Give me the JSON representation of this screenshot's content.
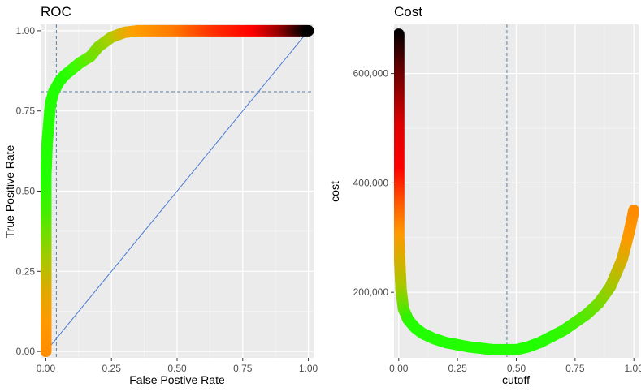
{
  "chart_data": [
    {
      "type": "scatter",
      "title": "ROC",
      "xlabel": "False Postive Rate",
      "ylabel": "True Positive Rate",
      "xlim": [
        -0.02,
        1.02
      ],
      "ylim": [
        -0.02,
        1.02
      ],
      "x_ticks": [
        "0.00",
        "0.25",
        "0.50",
        "0.75",
        "1.00"
      ],
      "y_ticks": [
        "0.00",
        "0.25",
        "0.50",
        "0.75",
        "1.00"
      ],
      "grid": true,
      "reference_lines": {
        "vline_x": 0.04,
        "hline_y": 0.81,
        "diagonal": [
          [
            0,
            0
          ],
          [
            1,
            1
          ]
        ]
      },
      "x": [
        0.0,
        0.0,
        0.0,
        0.0,
        0.0,
        0.0,
        0.005,
        0.01,
        0.015,
        0.02,
        0.03,
        0.05,
        0.07,
        0.1,
        0.13,
        0.17,
        0.2,
        0.25,
        0.3,
        0.35,
        0.5,
        0.65,
        0.8,
        0.9,
        1.0
      ],
      "y": [
        0.0,
        0.1,
        0.2,
        0.3,
        0.45,
        0.55,
        0.65,
        0.7,
        0.75,
        0.78,
        0.81,
        0.84,
        0.86,
        0.88,
        0.9,
        0.92,
        0.95,
        0.98,
        0.995,
        1.0,
        1.0,
        1.0,
        1.0,
        1.0,
        1.0
      ],
      "colors": [
        "#ff8c00",
        "#ff9900",
        "#e0a800",
        "#a8c800",
        "#44ee00",
        "#22ff00",
        "#22ff00",
        "#22ff00",
        "#22ff00",
        "#22ff00",
        "#22ff00",
        "#22ff00",
        "#22ff00",
        "#30ff00",
        "#44f800",
        "#66e800",
        "#80d800",
        "#a8d000",
        "#e0b000",
        "#ffa000",
        "#ff7a00",
        "#ff3000",
        "#ff0000",
        "#990000",
        "#000000"
      ]
    },
    {
      "type": "scatter",
      "title": "Cost",
      "xlabel": "cutoff",
      "ylabel": "cost",
      "xlim": [
        -0.02,
        1.02
      ],
      "ylim": [
        80000,
        690000
      ],
      "x_ticks": [
        "0.00",
        "0.25",
        "0.50",
        "0.75",
        "1.00"
      ],
      "y_ticks": [
        "200,000",
        "400,000",
        "600,000"
      ],
      "grid": true,
      "reference_lines": {
        "vline_x": 0.46
      },
      "x": [
        0.0,
        0.0,
        0.0,
        0.0,
        0.0,
        0.0,
        0.005,
        0.01,
        0.02,
        0.04,
        0.07,
        0.1,
        0.15,
        0.2,
        0.3,
        0.4,
        0.5,
        0.55,
        0.6,
        0.7,
        0.8,
        0.85,
        0.9,
        0.95,
        0.98,
        1.0
      ],
      "y": [
        672000,
        600000,
        500000,
        420000,
        350000,
        300000,
        250000,
        205000,
        170000,
        150000,
        135000,
        125000,
        115000,
        108000,
        100000,
        95000,
        95000,
        100000,
        108000,
        130000,
        160000,
        180000,
        210000,
        260000,
        310000,
        350000
      ],
      "colors": [
        "#000000",
        "#660000",
        "#dd0000",
        "#ff0000",
        "#ff6000",
        "#ff9900",
        "#d4b000",
        "#a8c800",
        "#66e000",
        "#33f000",
        "#22ff00",
        "#22ff00",
        "#22ff00",
        "#22ff00",
        "#22ff00",
        "#22ff00",
        "#22ff00",
        "#22ff00",
        "#22ff00",
        "#30f800",
        "#55e800",
        "#70de00",
        "#99cc00",
        "#d4b000",
        "#ff9900",
        "#ff8c00"
      ]
    }
  ]
}
